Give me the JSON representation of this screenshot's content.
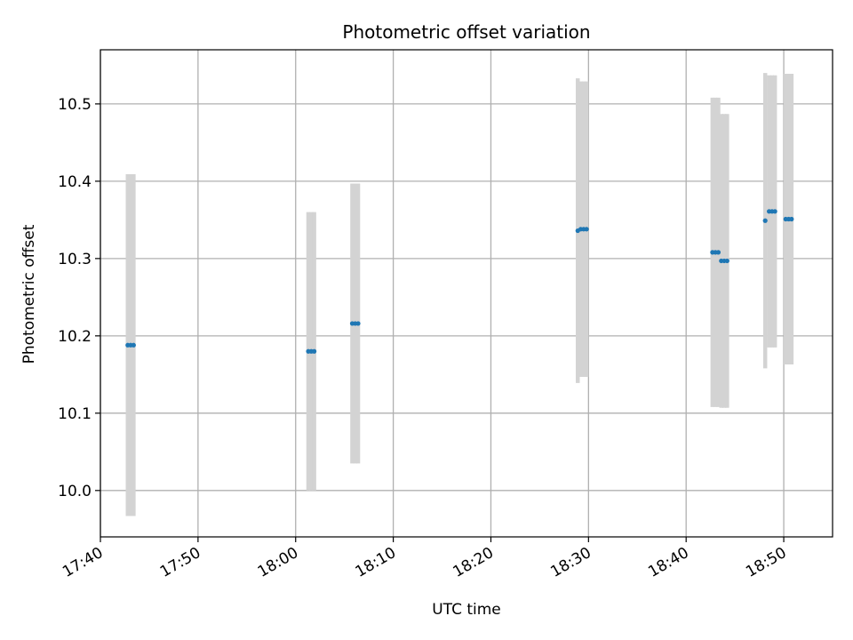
{
  "chart_data": {
    "type": "scatter",
    "title": "Photometric offset variation",
    "xlabel": "UTC time",
    "ylabel": "Photometric offset",
    "x_ticks": [
      "17:40",
      "17:50",
      "18:00",
      "18:10",
      "18:20",
      "18:30",
      "18:40",
      "18:50"
    ],
    "y_ticks": [
      "10.0",
      "10.1",
      "10.2",
      "10.3",
      "10.4",
      "10.5"
    ],
    "xlim": [
      "17:40:00",
      "18:55:00"
    ],
    "ylim": [
      9.94,
      10.57
    ],
    "grid": true,
    "colors": {
      "marker": "#1f77b4",
      "errorbar": "#d3d3d3",
      "grid": "#b0b0b0"
    },
    "points": [
      {
        "x": "17:42:48",
        "y": 10.188,
        "err": 0.221
      },
      {
        "x": "17:43:06",
        "y": 10.188,
        "err": 0.221
      },
      {
        "x": "17:43:24",
        "y": 10.188,
        "err": 0.221
      },
      {
        "x": "18:01:18",
        "y": 10.18,
        "err": 0.18
      },
      {
        "x": "18:01:36",
        "y": 10.18,
        "err": 0.18
      },
      {
        "x": "18:01:54",
        "y": 10.18,
        "err": 0.18
      },
      {
        "x": "18:05:48",
        "y": 10.216,
        "err": 0.181
      },
      {
        "x": "18:06:06",
        "y": 10.216,
        "err": 0.181
      },
      {
        "x": "18:06:24",
        "y": 10.216,
        "err": 0.181
      },
      {
        "x": "18:28:54",
        "y": 10.336,
        "err": 0.197
      },
      {
        "x": "18:29:12",
        "y": 10.338,
        "err": 0.191
      },
      {
        "x": "18:29:30",
        "y": 10.338,
        "err": 0.191
      },
      {
        "x": "18:29:48",
        "y": 10.338,
        "err": 0.191
      },
      {
        "x": "18:42:42",
        "y": 10.308,
        "err": 0.2
      },
      {
        "x": "18:43:00",
        "y": 10.308,
        "err": 0.2
      },
      {
        "x": "18:43:18",
        "y": 10.308,
        "err": 0.2
      },
      {
        "x": "18:43:36",
        "y": 10.297,
        "err": 0.19
      },
      {
        "x": "18:43:54",
        "y": 10.297,
        "err": 0.19
      },
      {
        "x": "18:44:12",
        "y": 10.297,
        "err": 0.19
      },
      {
        "x": "18:48:06",
        "y": 10.349,
        "err": 0.191
      },
      {
        "x": "18:48:30",
        "y": 10.361,
        "err": 0.176
      },
      {
        "x": "18:48:48",
        "y": 10.361,
        "err": 0.176
      },
      {
        "x": "18:49:06",
        "y": 10.361,
        "err": 0.176
      },
      {
        "x": "18:50:12",
        "y": 10.351,
        "err": 0.188
      },
      {
        "x": "18:50:30",
        "y": 10.351,
        "err": 0.188
      },
      {
        "x": "18:50:48",
        "y": 10.351,
        "err": 0.188
      }
    ]
  }
}
